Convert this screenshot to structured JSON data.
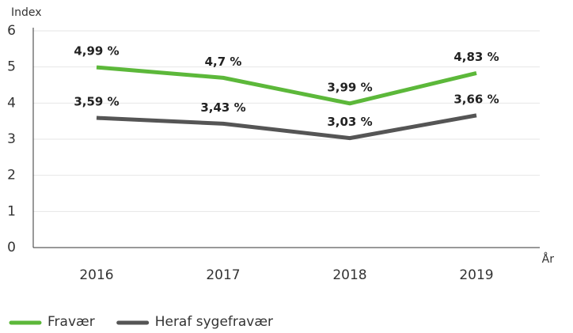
{
  "chart_data": {
    "type": "line",
    "categories": [
      "2016",
      "2017",
      "2018",
      "2019"
    ],
    "series": [
      {
        "name": "Fravær",
        "color": "#5cb83a",
        "values": [
          4.99,
          4.7,
          3.99,
          4.83
        ],
        "value_labels": [
          "4,99 %",
          "4,7 %",
          "3,99 %",
          "4,83 %"
        ]
      },
      {
        "name": "Heraf sygefravær",
        "color": "#555555",
        "values": [
          3.59,
          3.43,
          3.03,
          3.66
        ],
        "value_labels": [
          "3,59 %",
          "3,43 %",
          "3,03 %",
          "3,66 %"
        ]
      }
    ],
    "y_label": "Index",
    "x_label": "År",
    "ylim": [
      0,
      6
    ],
    "yticks": [
      0,
      1,
      2,
      3,
      4,
      5,
      6
    ],
    "grid": true,
    "legend": "bottom-left"
  }
}
